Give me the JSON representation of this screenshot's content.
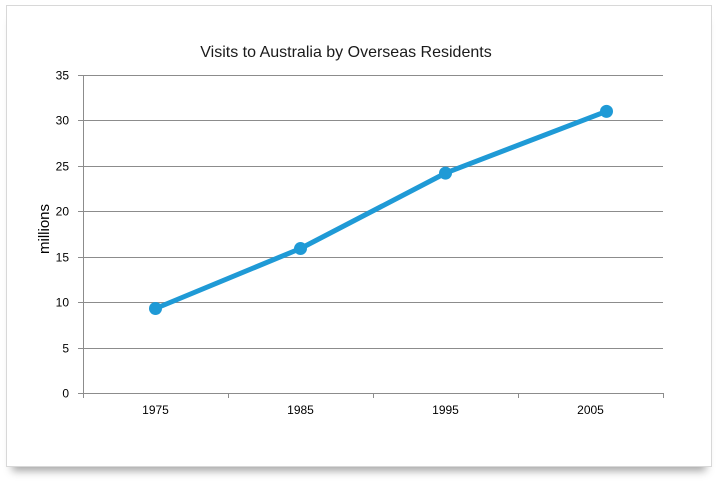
{
  "chart_data": {
    "type": "line",
    "title": "Visits to Australia by Overseas Residents",
    "xlabel": "",
    "ylabel": "millions",
    "categories": [
      "1975",
      "1985",
      "1995",
      "2005"
    ],
    "series": [
      {
        "values": [
          9.3,
          15.9,
          24.2,
          31.0
        ]
      }
    ],
    "ylim": [
      0,
      35
    ],
    "yticks": [
      "0",
      "5",
      "10",
      "15",
      "20",
      "25",
      "30",
      "35"
    ],
    "grid": true,
    "legend": "none",
    "colors": {
      "line": "#1f9ad6",
      "grid": "#8c8c8c",
      "text": "#000000"
    }
  }
}
